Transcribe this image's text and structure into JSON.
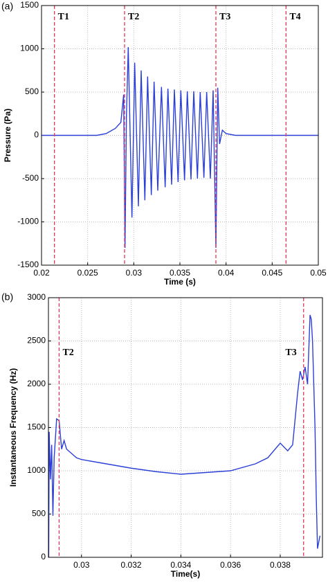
{
  "chart_data": [
    {
      "type": "line",
      "panel_label": "(a)",
      "x_label": "Time (s)",
      "y_label": "Pressure (Pa)",
      "xlim": [
        0.02,
        0.05
      ],
      "xticks": [
        0.02,
        0.025,
        0.03,
        0.035,
        0.04,
        0.045,
        0.05
      ],
      "ylim": [
        -1500,
        1500
      ],
      "yticks": [
        -1500,
        -1000,
        -500,
        0,
        500,
        1000,
        1500
      ],
      "grid": true,
      "markers": [
        {
          "x": 0.0214,
          "label": "T1"
        },
        {
          "x": 0.029,
          "label": "T2"
        },
        {
          "x": 0.0389,
          "label": "T3"
        },
        {
          "x": 0.0465,
          "label": "T4"
        }
      ],
      "marker_color": "#e8375a",
      "series": [
        {
          "color": "#2b3fd6",
          "x": [
            0.02,
            0.026,
            0.027,
            0.028,
            0.0286,
            0.0289,
            0.02905,
            0.0292,
            0.0294,
            0.0298,
            0.0301,
            0.0305,
            0.0308,
            0.0312,
            0.0315,
            0.0319,
            0.0322,
            0.0326,
            0.033,
            0.0334,
            0.0337,
            0.0341,
            0.0344,
            0.0348,
            0.0351,
            0.0355,
            0.0358,
            0.0362,
            0.0365,
            0.0369,
            0.0372,
            0.0376,
            0.0379,
            0.0383,
            0.0386,
            0.0389,
            0.0391,
            0.0393,
            0.0396,
            0.04,
            0.041,
            0.05
          ],
          "values": [
            0,
            0,
            20,
            80,
            150,
            470,
            -1300,
            200,
            1020,
            -950,
            840,
            -820,
            750,
            -750,
            680,
            -690,
            620,
            -640,
            560,
            -600,
            540,
            -570,
            530,
            -540,
            520,
            -520,
            510,
            -510,
            510,
            -500,
            500,
            -490,
            500,
            -500,
            520,
            -1300,
            550,
            -100,
            60,
            20,
            0,
            0
          ]
        }
      ]
    },
    {
      "type": "line",
      "panel_label": "(b)",
      "x_label": "Time(s)",
      "y_label": "Instantaneous Frequency (Hz)",
      "xlim": [
        0.02867,
        0.0397
      ],
      "xticks": [
        0.03,
        0.032,
        0.034,
        0.036,
        0.038
      ],
      "ylim": [
        0,
        3000
      ],
      "yticks": [
        0,
        500,
        1000,
        1500,
        2000,
        2500,
        3000
      ],
      "grid": true,
      "markers": [
        {
          "x": 0.0291,
          "label": "T2"
        },
        {
          "x": 0.03894,
          "label": "T3"
        }
      ],
      "marker_color": "#e8375a",
      "series": [
        {
          "color": "#2b3fd6",
          "x": [
            0.02868,
            0.0287,
            0.02875,
            0.0288,
            0.02885,
            0.0289,
            0.029,
            0.0291,
            0.0292,
            0.0293,
            0.0294,
            0.0296,
            0.0298,
            0.03,
            0.031,
            0.032,
            0.033,
            0.034,
            0.035,
            0.036,
            0.037,
            0.0375,
            0.038,
            0.0383,
            0.0385,
            0.0387,
            0.0388,
            0.0389,
            0.039,
            0.0391,
            0.0392,
            0.03925,
            0.0393,
            0.0394,
            0.03945,
            0.0395,
            0.0396
          ],
          "values": [
            0,
            1450,
            900,
            1300,
            480,
            1150,
            1600,
            1580,
            1250,
            1350,
            1250,
            1200,
            1150,
            1130,
            1080,
            1030,
            990,
            960,
            980,
            1000,
            1080,
            1150,
            1320,
            1230,
            1300,
            1900,
            2150,
            2050,
            2200,
            2000,
            2800,
            2750,
            2500,
            1500,
            700,
            100,
            250
          ]
        }
      ]
    }
  ]
}
